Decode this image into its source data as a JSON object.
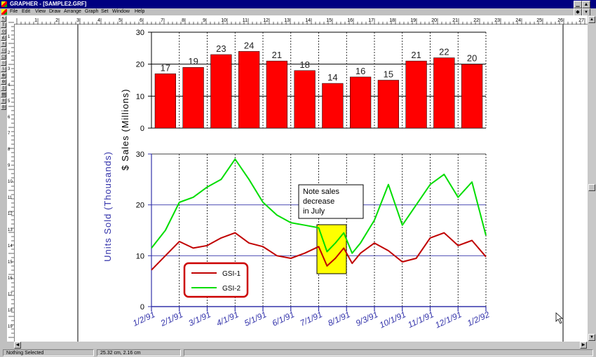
{
  "window": {
    "title": "GRAPHER - [SAMPLE2.GRF]"
  },
  "menu": [
    "File",
    "Edit",
    "View",
    "Draw",
    "Arrange",
    "Graph",
    "Set",
    "Window",
    "Help"
  ],
  "ruler_numbers": [
    "1",
    "2",
    "3",
    "4",
    "5",
    "6",
    "7",
    "8",
    "9",
    "10",
    "11",
    "12",
    "13",
    "14",
    "15",
    "16",
    "17",
    "18",
    "19",
    "20",
    "21",
    "22",
    "23",
    "24",
    "25",
    "26",
    "27"
  ],
  "vruler_numbers": [
    "1",
    "2",
    "3",
    "4",
    "5",
    "6",
    "7",
    "8",
    "9",
    "10",
    "11",
    "12",
    "13",
    "14",
    "15",
    "16",
    "17",
    "18",
    "19",
    "20"
  ],
  "status": {
    "selection": "Nothing Selected",
    "position": "25.32 cm, 2.16 cm"
  },
  "colors": {
    "bar_fill": "#ff0000",
    "gsi1": "#c00000",
    "gsi2": "#00dd00",
    "axis_blue": "#3333aa",
    "highlight": "#ffff00"
  },
  "chart_data": [
    {
      "type": "bar",
      "categories": [
        "1/2/91",
        "2/1/91",
        "3/1/91",
        "4/1/91",
        "5/1/91",
        "6/1/91",
        "7/1/91",
        "8/1/91",
        "9/3/91",
        "10/1/91",
        "11/1/91",
        "12/1/91"
      ],
      "values": [
        17,
        19,
        23,
        24,
        21,
        18,
        14,
        16,
        15,
        21,
        22,
        20
      ],
      "data_labels": [
        "17",
        "19",
        "23",
        "24",
        "21",
        "18",
        "14",
        "16",
        "15",
        "21",
        "22",
        "20"
      ],
      "ylabel": "$ Sales (Millions)",
      "ylim": [
        0,
        30
      ],
      "yticks": [
        "0",
        "10",
        "20",
        "30"
      ],
      "grid": true
    },
    {
      "type": "line",
      "xlabels": [
        "1/2/91",
        "2/1/91",
        "3/1/91",
        "4/1/91",
        "5/1/91",
        "6/1/91",
        "7/1/91",
        "8/1/91",
        "9/3/91",
        "10/1/91",
        "11/1/91",
        "12/1/91",
        "1/2/92"
      ],
      "ylabel": "Units Sold (Thousands)",
      "ylim": [
        0,
        30
      ],
      "yticks": [
        "0",
        "10",
        "20",
        "30"
      ],
      "grid": true,
      "legend": {
        "placement": "bottom-left"
      },
      "annotation": {
        "lines": [
          "Note sales",
          "decrease",
          "in July"
        ]
      },
      "series": [
        {
          "name": "GSI-1",
          "x_months": [
            0,
            0.5,
            1,
            1.5,
            2,
            2.5,
            3,
            3.5,
            4,
            4.5,
            5,
            5.5,
            6,
            6.3,
            6.6,
            6.9,
            7.2,
            7.5,
            8,
            8.5,
            9,
            9.5,
            10,
            10.5,
            11,
            11.5,
            12
          ],
          "values": [
            7.2,
            10,
            12.8,
            11.5,
            12,
            13.5,
            14.5,
            12.5,
            11.8,
            10,
            9.5,
            10.5,
            11.8,
            8,
            9.5,
            11.5,
            8.5,
            10.5,
            12.5,
            11,
            8.8,
            9.5,
            13.5,
            14.5,
            12,
            13,
            9.8
          ]
        },
        {
          "name": "GSI-2",
          "x_months": [
            0,
            0.5,
            1,
            1.5,
            2,
            2.5,
            3,
            3.5,
            4,
            4.5,
            5,
            5.5,
            6,
            6.3,
            6.6,
            6.9,
            7.2,
            7.5,
            8,
            8.5,
            9,
            9.5,
            10,
            10.5,
            11,
            11.5,
            12
          ],
          "values": [
            11.5,
            15,
            20.5,
            21.5,
            23.5,
            25,
            29,
            25,
            20.5,
            18,
            16.5,
            16,
            15.5,
            10.8,
            12.5,
            14.5,
            10.5,
            12.5,
            17,
            24,
            16,
            20,
            24,
            26,
            21.5,
            24.5,
            14
          ]
        }
      ]
    }
  ]
}
